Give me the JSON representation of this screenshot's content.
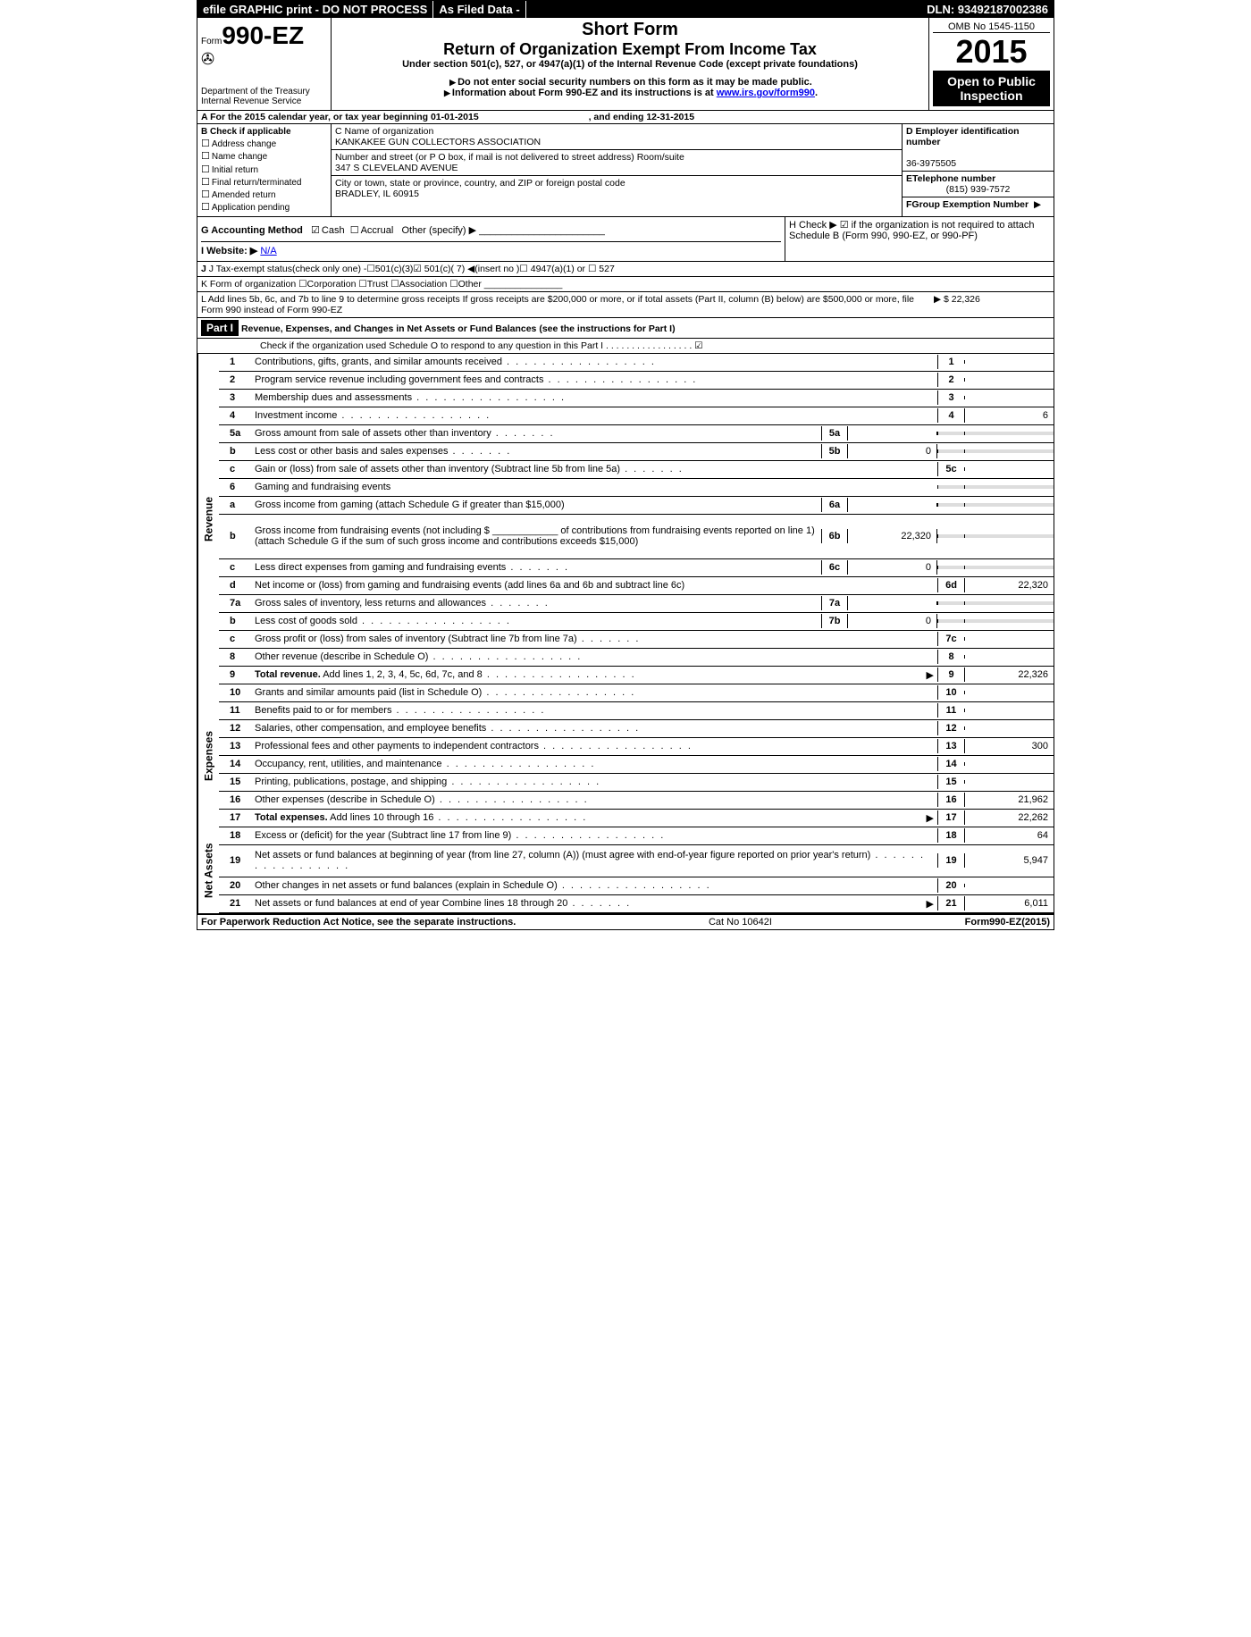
{
  "top": {
    "efile": "efile GRAPHIC print - DO NOT PROCESS",
    "asfiled": "As Filed Data -",
    "dln": "DLN: 93492187002386"
  },
  "hdr": {
    "form_label": "Form",
    "form_no": "990-EZ",
    "short": "Short Form",
    "title": "Return of Organization Exempt From Income Tax",
    "section": "Under section 501(c), 527, or 4947(a)(1) of the Internal Revenue Code (except private foundations)",
    "warn1": "Do not enter social security numbers on this form as it may be made public.",
    "warn2": "Information about Form 990-EZ and its instructions is at",
    "irs_link": "www.irs.gov/form990",
    "omb": "OMB No 1545-1150",
    "year": "2015",
    "open": "Open to Public Inspection",
    "dept1": "Department of the Treasury",
    "dept2": "Internal Revenue Service"
  },
  "A": {
    "text": "A  For the 2015 calendar year, or tax year beginning 01-01-2015",
    "end": ", and ending 12-31-2015"
  },
  "B": {
    "title": "B  Check if applicable",
    "opts": [
      "Address change",
      "Name change",
      "Initial return",
      "Final return/terminated",
      "Amended return",
      "Application pending"
    ]
  },
  "C": {
    "label_name": "C Name of organization",
    "name": "KANKAKEE GUN COLLECTORS ASSOCIATION",
    "label_street": "Number and street (or P  O  box, if mail is not delivered to street address) Room/suite",
    "street": "347 S CLEVELAND AVENUE",
    "label_city": "City or town, state or province, country, and ZIP or foreign postal code",
    "city": "BRADLEY, IL  60915"
  },
  "D": {
    "label": "D Employer identification number",
    "ein": "36-3975505",
    "tel_label": "ETelephone number",
    "tel": "(815) 939-7572",
    "grp_label": "FGroup Exemption Number",
    "grp_arrow": "▶"
  },
  "G": {
    "label": "G Accounting Method",
    "cash": "Cash",
    "accrual": "Accrual",
    "other": "Other (specify) ▶"
  },
  "H": {
    "text": "H  Check ▶ ☑ if the organization is not required to attach Schedule B (Form 990, 990-EZ, or 990-PF)"
  },
  "I": {
    "label": "I Website: ▶",
    "val": "N/A"
  },
  "J": {
    "text": "J Tax-exempt status(check only one) -☐501(c)(3)☑ 501(c)( 7) ◀(insert no )☐ 4947(a)(1) or ☐ 527"
  },
  "K": {
    "text": "K Form of organization  ☐Corporation  ☐Trust  ☐Association  ☐Other"
  },
  "L": {
    "text": "L Add lines 5b, 6c, and 7b to line 9 to determine gross receipts  If gross receipts are $200,000 or more, or if total assets (Part II, column (B) below) are $500,000 or more, file Form 990 instead of Form 990-EZ",
    "val": "▶ $ 22,326"
  },
  "part1": {
    "label": "Part I",
    "title": "Revenue, Expenses, and Changes in Net Assets or Fund Balances (see the instructions for Part I)",
    "check_o": "Check if the organization used Schedule O to respond to any question in this Part I  . . . . . . . . . . . . . . . . .  ☑"
  },
  "lines": {
    "l1": {
      "n": "1",
      "d": "Contributions, gifts, grants, and similar amounts received",
      "rn": "1",
      "rv": ""
    },
    "l2": {
      "n": "2",
      "d": "Program service revenue including government fees and contracts",
      "rn": "2",
      "rv": ""
    },
    "l3": {
      "n": "3",
      "d": "Membership dues and assessments",
      "rn": "3",
      "rv": ""
    },
    "l4": {
      "n": "4",
      "d": "Investment income",
      "rn": "4",
      "rv": "6"
    },
    "l5a": {
      "n": "5a",
      "d": "Gross amount from sale of assets other than inventory",
      "mn": "5a",
      "mv": ""
    },
    "l5b": {
      "n": "b",
      "d": "Less  cost or other basis and sales expenses",
      "mn": "5b",
      "mv": "0"
    },
    "l5c": {
      "n": "c",
      "d": "Gain or (loss) from sale of assets other than inventory (Subtract line 5b from line 5a)",
      "rn": "5c",
      "rv": ""
    },
    "l6": {
      "n": "6",
      "d": "Gaming and fundraising events"
    },
    "l6a": {
      "n": "a",
      "d": "Gross income from gaming (attach Schedule G if greater than $15,000)",
      "mn": "6a",
      "mv": ""
    },
    "l6b": {
      "n": "b",
      "d": "Gross income from fundraising events (not including $ ____________ of contributions from fundraising events reported on line 1) (attach Schedule G if the sum of such gross income and contributions exceeds $15,000)",
      "mn": "6b",
      "mv": "22,320"
    },
    "l6c": {
      "n": "c",
      "d": "Less  direct expenses from gaming and fundraising events",
      "mn": "6c",
      "mv": "0"
    },
    "l6d": {
      "n": "d",
      "d": "Net income or (loss) from gaming and fundraising events (add lines 6a and 6b and subtract line 6c)",
      "rn": "6d",
      "rv": "22,320"
    },
    "l7a": {
      "n": "7a",
      "d": "Gross sales of inventory, less returns and allowances",
      "mn": "7a",
      "mv": ""
    },
    "l7b": {
      "n": "b",
      "d": "Less  cost of goods sold",
      "mn": "7b",
      "mv": "0"
    },
    "l7c": {
      "n": "c",
      "d": "Gross profit or (loss) from sales of inventory (Subtract line 7b from line 7a)",
      "rn": "7c",
      "rv": ""
    },
    "l8": {
      "n": "8",
      "d": "Other revenue (describe in Schedule O)",
      "rn": "8",
      "rv": ""
    },
    "l9": {
      "n": "9",
      "d": "Total revenue. Add lines 1, 2, 3, 4, 5c, 6d, 7c, and 8",
      "rn": "9",
      "rv": "22,326",
      "arrow": true,
      "bold": true
    },
    "l10": {
      "n": "10",
      "d": "Grants and similar amounts paid (list in Schedule O)",
      "rn": "10",
      "rv": ""
    },
    "l11": {
      "n": "11",
      "d": "Benefits paid to or for members",
      "rn": "11",
      "rv": ""
    },
    "l12": {
      "n": "12",
      "d": "Salaries, other compensation, and employee benefits",
      "rn": "12",
      "rv": ""
    },
    "l13": {
      "n": "13",
      "d": "Professional fees and other payments to independent contractors",
      "rn": "13",
      "rv": "300"
    },
    "l14": {
      "n": "14",
      "d": "Occupancy, rent, utilities, and maintenance",
      "rn": "14",
      "rv": ""
    },
    "l15": {
      "n": "15",
      "d": "Printing, publications, postage, and shipping",
      "rn": "15",
      "rv": ""
    },
    "l16": {
      "n": "16",
      "d": "Other expenses (describe in Schedule O)",
      "rn": "16",
      "rv": "21,962"
    },
    "l17": {
      "n": "17",
      "d": "Total expenses. Add lines 10 through 16",
      "rn": "17",
      "rv": "22,262",
      "arrow": true,
      "bold": true
    },
    "l18": {
      "n": "18",
      "d": "Excess or (deficit) for the year (Subtract line 17 from line 9)",
      "rn": "18",
      "rv": "64"
    },
    "l19": {
      "n": "19",
      "d": "Net assets or fund balances at beginning of year (from line 27, column (A)) (must agree with end-of-year figure reported on prior year's return)",
      "rn": "19",
      "rv": "5,947"
    },
    "l20": {
      "n": "20",
      "d": "Other changes in net assets or fund balances (explain in Schedule O)",
      "rn": "20",
      "rv": ""
    },
    "l21": {
      "n": "21",
      "d": "Net assets or fund balances at end of year  Combine lines 18 through 20",
      "rn": "21",
      "rv": "6,011",
      "arrow": true
    }
  },
  "sections": {
    "rev": "Revenue",
    "exp": "Expenses",
    "na": "Net Assets"
  },
  "footer": {
    "left": "For Paperwork Reduction Act Notice, see the separate instructions.",
    "mid": "Cat  No  10642I",
    "right": "Form990-EZ(2015)"
  }
}
